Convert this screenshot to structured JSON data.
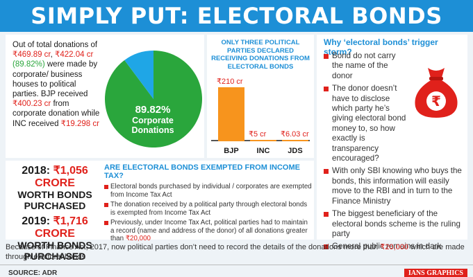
{
  "header": {
    "title": "SIMPLY PUT: ELECTORAL BONDS"
  },
  "donations": {
    "line1": "Out of total donations of",
    "amount_total": "₹469.89 cr",
    "sep": ", ",
    "amount_corporate": "₹422.04 cr",
    "percent": "(89.82%)",
    "line2": " were made by corporate/ business houses to political parties. BJP received",
    "amount_bjp": "₹400.23 cr",
    "line3": " from corporate donation while INC received",
    "amount_inc": "₹19.298 cr",
    "pie_pct": "89.82%",
    "pie_cap1": "Corporate",
    "pie_cap2": "Donations",
    "pie_fraction": 0.8982,
    "color_major": "#2aa63c",
    "color_minor": "#1fa6e6"
  },
  "chart_data": {
    "type": "bar",
    "title": "ONLY THREE POLITICAL PARTIES DECLARED RECEIVING DONATIONS FROM ELECTORAL BONDS",
    "categories": [
      "BJP",
      "INC",
      "JDS"
    ],
    "values": [
      210,
      5,
      6.03
    ],
    "value_labels": [
      "₹210 cr",
      "₹5 cr",
      "₹6.03 cr"
    ],
    "ylim": [
      0,
      210
    ],
    "color": "#f7941d"
  },
  "years": {
    "y2018_label": "2018: ",
    "y2018_amount": "₹1,056 CRORE",
    "y2018_sub1": "WORTH BONDS",
    "y2018_sub2": "PURCHASED",
    "y2019_label": "2019: ",
    "y2019_amount": "₹1,716 CRORE",
    "y2019_sub1": "WORTH BONDS",
    "y2019_sub2": "PURCHASED"
  },
  "exempt": {
    "title": "ARE ELECTORAL BONDS EXEMPTED FROM INCOME TAX?",
    "items": [
      "Electoral bonds purchased by individual / corporates are exempted from Income Tax Act",
      "The donation received by a political party through electoral bonds is exempted from Income Tax Act",
      "Previously, under Income Tax Act, political parties had to maintain a record (name and address of the donor) of all donations greater than ",
      "₹20,000"
    ]
  },
  "why": {
    "title": "Why ‘electoral bonds’ trigger storm?",
    "items": [
      "Bond do not carry the name of the donor",
      "The donor doesn’t have to disclose which party he’s giving electoral bond money to, so how exactly is transparency encouraged?",
      "With only SBI knowing who buys the bonds, this information will easily move to the RBI and in turn to the Finance Ministry",
      "The biggest beneficiary of the electoral bonds scheme is the ruling party",
      "General public remains in dark"
    ],
    "bag_icon_symbol": "₹"
  },
  "footer": {
    "note_a": "Because of Finance Act, 2017, now political parties don’t need to record the details of the donations more than ",
    "note_amount": "₹20,000",
    "note_b": " which are made through electoral bonds",
    "source": "SOURCE: ADR",
    "credit": "IANS GRAPHICS"
  }
}
